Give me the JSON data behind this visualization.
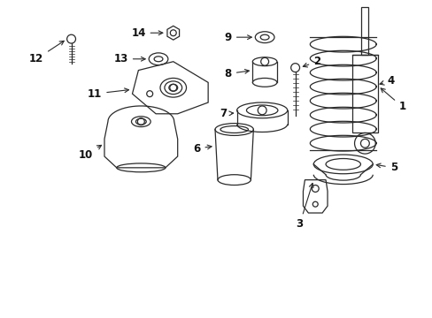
{
  "background_color": "#ffffff",
  "fig_width": 4.89,
  "fig_height": 3.6,
  "dpi": 100,
  "line_color": "#2a2a2a",
  "text_color": "#111111",
  "font_size": 8.5
}
